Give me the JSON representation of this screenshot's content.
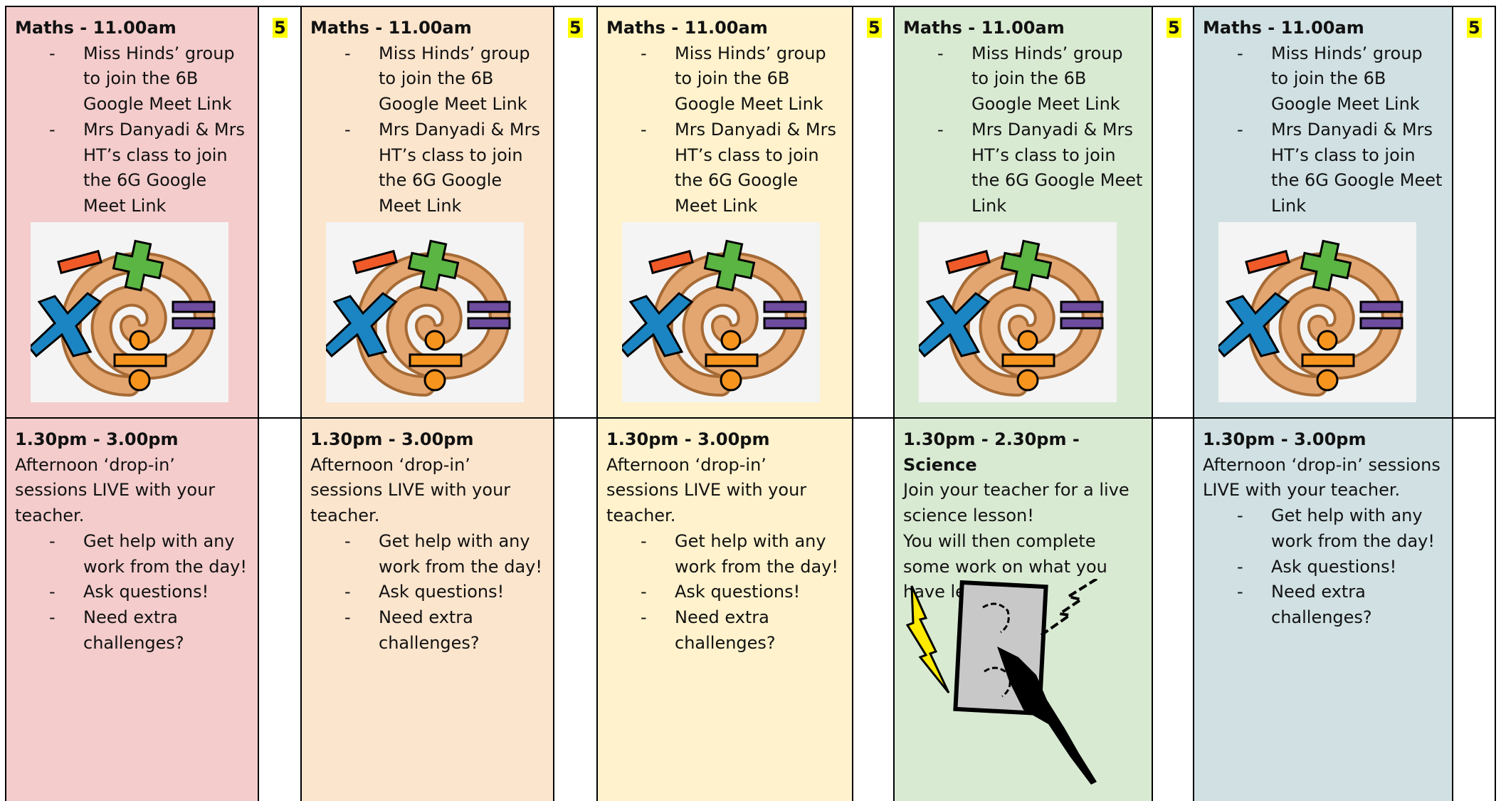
{
  "columns": [
    {
      "morning": {
        "heading": "Maths - 11.00am",
        "bullets": [
          "Miss Hinds’ group to join the 6B Google Meet Link",
          "Mrs Danyadi & Mrs HT’s class to join the 6G Google Meet Link"
        ]
      },
      "badge": "5",
      "afternoon": {
        "heading": "1.30pm - 3.00pm",
        "lines": [
          "Afternoon ‘drop-in’ sessions LIVE with your teacher."
        ],
        "bullets": [
          "Get help with any work from the day!",
          "Ask questions!",
          "Need extra challenges?"
        ]
      }
    },
    {
      "morning": {
        "heading": "Maths - 11.00am",
        "bullets": [
          "Miss Hinds’ group to join the 6B Google Meet Link",
          "Mrs Danyadi & Mrs HT’s class to join the 6G Google Meet Link"
        ]
      },
      "badge": "5",
      "afternoon": {
        "heading": "1.30pm - 3.00pm",
        "lines": [
          "Afternoon ‘drop-in’ sessions LIVE with your teacher."
        ],
        "bullets": [
          "Get help with any work from the day!",
          "Ask questions!",
          "Need extra challenges?"
        ]
      }
    },
    {
      "morning": {
        "heading": "Maths - 11.00am",
        "bullets": [
          "Miss Hinds’ group to join the 6B Google Meet Link",
          "Mrs Danyadi & Mrs HT’s class to join the 6G Google Meet Link"
        ]
      },
      "badge": "5",
      "afternoon": {
        "heading": "1.30pm - 3.00pm",
        "lines": [
          "Afternoon ‘drop-in’ sessions LIVE with your teacher."
        ],
        "bullets": [
          "Get help with any work from the day!",
          "Ask questions!",
          "Need extra challenges?"
        ]
      }
    },
    {
      "morning": {
        "heading": "Maths - 11.00am",
        "bullets": [
          "Miss Hinds’ group to join the 6B Google Meet Link",
          "Mrs Danyadi & Mrs HT’s class to join the 6G Google Meet Link"
        ]
      },
      "badge": "5",
      "afternoon": {
        "heading": "1.30pm - 2.30pm - Science",
        "lines": [
          "Join your teacher for a live science lesson!",
          "You will then complete some work on what you have learnt!"
        ]
      }
    },
    {
      "morning": {
        "heading": "Maths - 11.00am",
        "bullets": [
          "Miss Hinds’ group to join the 6B Google Meet Link",
          "Mrs Danyadi & Mrs HT’s class to join the 6G Google Meet Link"
        ]
      },
      "badge": "5",
      "afternoon": {
        "heading": "1.30pm - 3.00pm",
        "lines": [
          "Afternoon ‘drop-in’ sessions LIVE with your teacher."
        ],
        "bullets": [
          "Get help with any work from the day!",
          "Ask questions!",
          "Need extra challenges?"
        ]
      }
    }
  ]
}
